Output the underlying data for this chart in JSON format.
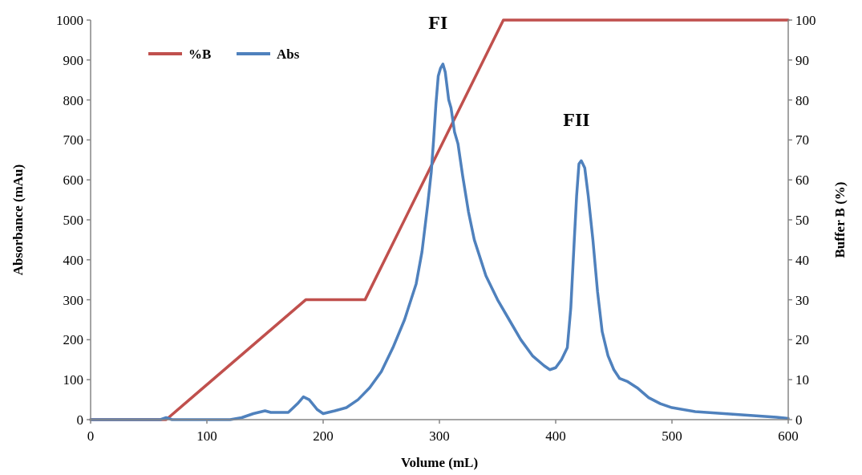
{
  "chart_data": {
    "type": "line",
    "xlabel": "Volume (mL)",
    "ylabel": "Absorbance (mAu)",
    "y2label": "Buffer B (%)",
    "xlim": [
      0,
      600
    ],
    "xticks": [
      0,
      100,
      200,
      300,
      400,
      500,
      600
    ],
    "ylim": [
      0,
      1000
    ],
    "yticks": [
      0,
      100,
      200,
      300,
      400,
      500,
      600,
      700,
      800,
      900,
      1000
    ],
    "y2lim": [
      0,
      100
    ],
    "y2ticks": [
      0,
      10,
      20,
      30,
      40,
      50,
      60,
      70,
      80,
      90,
      100
    ],
    "legend": "top left",
    "grid": false,
    "line_style": "solid",
    "annotations": [
      {
        "text": "FI",
        "x": 303,
        "y": 890
      },
      {
        "text": "FII",
        "x": 422,
        "y": 648
      }
    ],
    "series": [
      {
        "name": "%B",
        "color": "#c0504d",
        "axis": "y2",
        "x": [
          0,
          65,
          185,
          236,
          355,
          600
        ],
        "values": [
          0,
          0,
          30,
          30,
          100,
          100
        ]
      },
      {
        "name": "Abs",
        "color": "#4f81bd",
        "x": [
          0,
          60,
          65,
          70,
          120,
          130,
          140,
          150,
          155,
          170,
          178,
          183,
          188,
          195,
          200,
          210,
          220,
          230,
          240,
          250,
          260,
          270,
          280,
          285,
          290,
          293,
          295,
          297,
          299,
          301,
          303,
          305,
          308,
          310,
          313,
          316,
          320,
          325,
          330,
          340,
          350,
          360,
          370,
          380,
          390,
          395,
          400,
          405,
          410,
          413,
          416,
          418,
          420,
          422,
          425,
          428,
          432,
          436,
          440,
          445,
          450,
          455,
          462,
          470,
          480,
          490,
          500,
          520,
          550,
          570,
          590,
          600
        ],
        "values": [
          0,
          0,
          5,
          0,
          0,
          5,
          15,
          22,
          18,
          18,
          40,
          57,
          50,
          25,
          15,
          22,
          30,
          50,
          80,
          120,
          180,
          250,
          340,
          420,
          540,
          620,
          700,
          790,
          860,
          880,
          890,
          870,
          800,
          780,
          720,
          690,
          610,
          520,
          450,
          360,
          300,
          250,
          200,
          160,
          135,
          125,
          130,
          150,
          180,
          280,
          450,
          560,
          640,
          648,
          630,
          560,
          450,
          320,
          220,
          160,
          125,
          103,
          95,
          80,
          55,
          40,
          30,
          20,
          14,
          10,
          6,
          3
        ]
      }
    ]
  }
}
